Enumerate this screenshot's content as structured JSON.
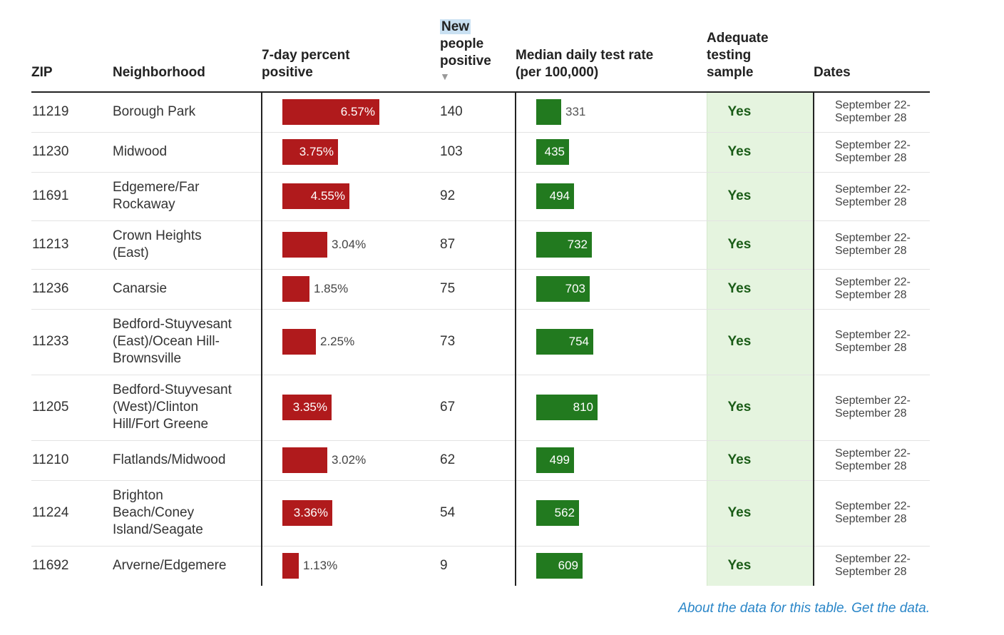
{
  "headers": {
    "zip": "ZIP",
    "neighborhood": "Neighborhood",
    "pct_line1": "7-day percent",
    "pct_line2": "positive",
    "new_line1": "New",
    "new_line2": "people",
    "new_line3": "positive",
    "sort_arrow": "▼",
    "rate_line1": "Median daily test rate",
    "rate_line2": "(per 100,000)",
    "adeq_line1": "Adequate",
    "adeq_line2": "testing",
    "adeq_line3": "sample",
    "dates": "Dates"
  },
  "colors": {
    "pct_bar": "#b01a1c",
    "rate_bar": "#227a1f",
    "adequate_bg": "#e5f4df",
    "link": "#2a86c8"
  },
  "rows": [
    {
      "zip": "11219",
      "neighborhood": [
        "Borough Park"
      ],
      "pct": 6.57,
      "pct_label": "6.57%",
      "new": "140",
      "rate": 331,
      "rate_label": "331",
      "adequate": "Yes",
      "dates1": "September 22-",
      "dates2": "September 28"
    },
    {
      "zip": "11230",
      "neighborhood": [
        "Midwood"
      ],
      "pct": 3.75,
      "pct_label": "3.75%",
      "new": "103",
      "rate": 435,
      "rate_label": "435",
      "adequate": "Yes",
      "dates1": "September 22-",
      "dates2": "September 28"
    },
    {
      "zip": "11691",
      "neighborhood": [
        "Edgemere/Far",
        "Rockaway"
      ],
      "pct": 4.55,
      "pct_label": "4.55%",
      "new": "92",
      "rate": 494,
      "rate_label": "494",
      "adequate": "Yes",
      "dates1": "September 22-",
      "dates2": "September 28"
    },
    {
      "zip": "11213",
      "neighborhood": [
        "Crown Heights",
        "(East)"
      ],
      "pct": 3.04,
      "pct_label": "3.04%",
      "new": "87",
      "rate": 732,
      "rate_label": "732",
      "adequate": "Yes",
      "dates1": "September 22-",
      "dates2": "September 28"
    },
    {
      "zip": "11236",
      "neighborhood": [
        "Canarsie"
      ],
      "pct": 1.85,
      "pct_label": "1.85%",
      "new": "75",
      "rate": 703,
      "rate_label": "703",
      "adequate": "Yes",
      "dates1": "September 22-",
      "dates2": "September 28"
    },
    {
      "zip": "11233",
      "neighborhood": [
        "Bedford-Stuyvesant",
        "(East)/Ocean Hill-",
        "Brownsville"
      ],
      "pct": 2.25,
      "pct_label": "2.25%",
      "new": "73",
      "rate": 754,
      "rate_label": "754",
      "adequate": "Yes",
      "dates1": "September 22-",
      "dates2": "September 28"
    },
    {
      "zip": "11205",
      "neighborhood": [
        "Bedford-Stuyvesant",
        "(West)/Clinton",
        "Hill/Fort Greene"
      ],
      "pct": 3.35,
      "pct_label": "3.35%",
      "new": "67",
      "rate": 810,
      "rate_label": "810",
      "adequate": "Yes",
      "dates1": "September 22-",
      "dates2": "September 28"
    },
    {
      "zip": "11210",
      "neighborhood": [
        "Flatlands/Midwood"
      ],
      "pct": 3.02,
      "pct_label": "3.02%",
      "new": "62",
      "rate": 499,
      "rate_label": "499",
      "adequate": "Yes",
      "dates1": "September 22-",
      "dates2": "September 28"
    },
    {
      "zip": "11224",
      "neighborhood": [
        "Brighton",
        "Beach/Coney",
        "Island/Seagate"
      ],
      "pct": 3.36,
      "pct_label": "3.36%",
      "new": "54",
      "rate": 562,
      "rate_label": "562",
      "adequate": "Yes",
      "dates1": "September 22-",
      "dates2": "September 28"
    },
    {
      "zip": "11692",
      "neighborhood": [
        "Arverne/Edgemere"
      ],
      "pct": 1.13,
      "pct_label": "1.13%",
      "new": "9",
      "rate": 609,
      "rate_label": "609",
      "adequate": "Yes",
      "dates1": "September 22-",
      "dates2": "September 28"
    }
  ],
  "footer": {
    "about_link": "About the data for this table",
    "sep": ". ",
    "get_link": "Get the data",
    "end": "."
  }
}
